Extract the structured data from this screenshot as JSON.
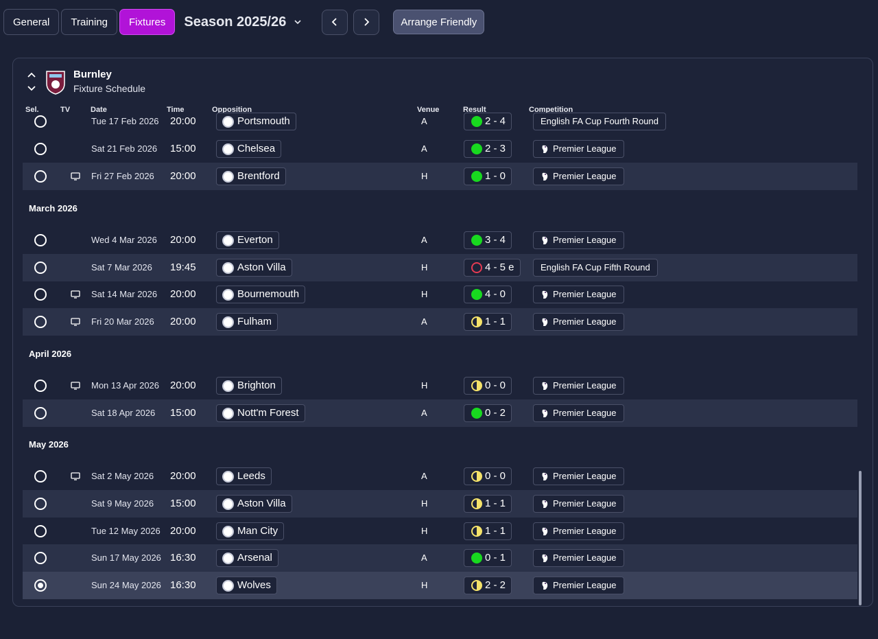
{
  "tabs": [
    {
      "label": "General"
    },
    {
      "label": "Training"
    },
    {
      "label": "Fixtures"
    }
  ],
  "season_label": "Season 2025/26",
  "arrange_label": "Arrange Friendly",
  "club": {
    "name": "Burnley",
    "subtitle": "Fixture Schedule"
  },
  "columns": {
    "sel": "Sel.",
    "tv": "TV",
    "date": "Date",
    "time": "Time",
    "opposition": "Opposition",
    "venue": "Venue",
    "result": "Result",
    "competition": "Competition"
  },
  "months": [
    "March 2026",
    "April 2026",
    "May 2026"
  ],
  "fixtures": [
    {
      "date": "Tue 17 Feb 2026",
      "time": "20:00",
      "opp": "Portsmouth",
      "venue": "A",
      "result": "2 - 4",
      "outcome": "win",
      "comp": "English FA Cup Fourth Round",
      "tv": false
    },
    {
      "date": "Sat 21 Feb 2026",
      "time": "15:00",
      "opp": "Chelsea",
      "venue": "A",
      "result": "2 - 3",
      "outcome": "win",
      "comp": "Premier League",
      "tv": false
    },
    {
      "date": "Fri 27 Feb 2026",
      "time": "20:00",
      "opp": "Brentford",
      "venue": "H",
      "result": "1 - 0",
      "outcome": "win",
      "comp": "Premier League",
      "tv": true
    },
    {
      "date": "Wed 4 Mar 2026",
      "time": "20:00",
      "opp": "Everton",
      "venue": "A",
      "result": "3 - 4",
      "outcome": "win",
      "comp": "Premier League",
      "tv": false
    },
    {
      "date": "Sat 7 Mar 2026",
      "time": "19:45",
      "opp": "Aston Villa",
      "venue": "H",
      "result": "4 - 5 e",
      "outcome": "loss",
      "comp": "English FA Cup Fifth Round",
      "tv": false
    },
    {
      "date": "Sat 14 Mar 2026",
      "time": "20:00",
      "opp": "Bournemouth",
      "venue": "H",
      "result": "4 - 0",
      "outcome": "win",
      "comp": "Premier League",
      "tv": true
    },
    {
      "date": "Fri 20 Mar 2026",
      "time": "20:00",
      "opp": "Fulham",
      "venue": "A",
      "result": "1 - 1",
      "outcome": "draw",
      "comp": "Premier League",
      "tv": true
    },
    {
      "date": "Mon 13 Apr 2026",
      "time": "20:00",
      "opp": "Brighton",
      "venue": "H",
      "result": "0 - 0",
      "outcome": "draw",
      "comp": "Premier League",
      "tv": true
    },
    {
      "date": "Sat 18 Apr 2026",
      "time": "15:00",
      "opp": "Nott'm Forest",
      "venue": "A",
      "result": "0 - 2",
      "outcome": "win",
      "comp": "Premier League",
      "tv": false
    },
    {
      "date": "Sat 2 May 2026",
      "time": "20:00",
      "opp": "Leeds",
      "venue": "A",
      "result": "0 - 0",
      "outcome": "draw",
      "comp": "Premier League",
      "tv": true
    },
    {
      "date": "Sat 9 May 2026",
      "time": "15:00",
      "opp": "Aston Villa",
      "venue": "H",
      "result": "1 - 1",
      "outcome": "draw",
      "comp": "Premier League",
      "tv": false
    },
    {
      "date": "Tue 12 May 2026",
      "time": "20:00",
      "opp": "Man City",
      "venue": "H",
      "result": "1 - 1",
      "outcome": "draw",
      "comp": "Premier League",
      "tv": false
    },
    {
      "date": "Sun 17 May 2026",
      "time": "16:30",
      "opp": "Arsenal",
      "venue": "A",
      "result": "0 - 1",
      "outcome": "win",
      "comp": "Premier League",
      "tv": false
    },
    {
      "date": "Sun 24 May 2026",
      "time": "16:30",
      "opp": "Wolves",
      "venue": "H",
      "result": "2 - 2",
      "outcome": "draw",
      "comp": "Premier League",
      "tv": false,
      "selected": true
    }
  ],
  "colors": {
    "accent": "#b113d8",
    "win": "#18d91f",
    "draw": "#f4e26a",
    "loss": "#e63b53",
    "crest": "#7a1d3d"
  }
}
